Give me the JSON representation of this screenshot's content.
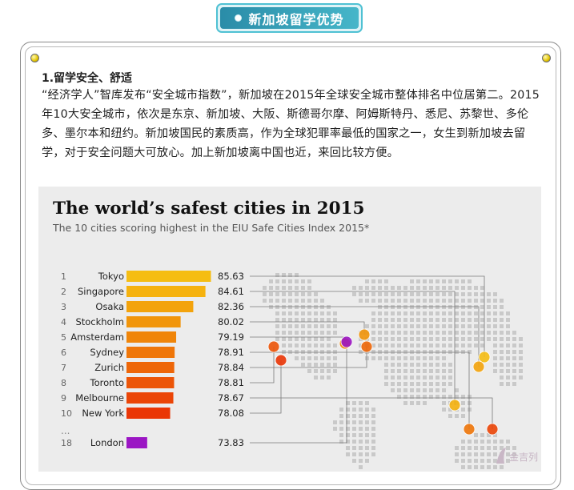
{
  "banner": {
    "title": "新加坡留学优势"
  },
  "section": {
    "title": "1.留学安全、舒适",
    "paragraph": "“经济学人”智库发布“安全城市指数”，新加坡在2015年全球安全城市整体排名中位居第二。2015年10大安全城市，依次是东京、新加坡、大阪、斯德哥尔摩、阿姆斯特丹、悉尼、苏黎世、多伦多、墨尔本和纽约。新加坡国民的素质高，作为全球犯罪率最低的国家之一，女生到新加坡去留学，对于安全问题大可放心。加上新加坡离中国也近，来回比较方便。"
  },
  "chart_data": {
    "type": "bar",
    "orientation": "horizontal",
    "title": "The world’s safest cities in 2015",
    "subtitle": "The 10 cities scoring highest in the EIU Safe Cities Index 2015*",
    "ranks": [
      "1",
      "2",
      "3",
      "4",
      "5",
      "6",
      "7",
      "8",
      "9",
      "10",
      "18"
    ],
    "categories": [
      "Tokyo",
      "Singapore",
      "Osaka",
      "Stockholm",
      "Amsterdam",
      "Sydney",
      "Zurich",
      "Toronto",
      "Melbourne",
      "New York",
      "London"
    ],
    "values": [
      85.63,
      84.61,
      82.36,
      80.02,
      79.19,
      78.91,
      78.84,
      78.81,
      78.67,
      78.08,
      73.83
    ],
    "value_labels": [
      "85.63",
      "84.61",
      "82.36",
      "80.02",
      "79.19",
      "78.91",
      "78.84",
      "78.81",
      "78.67",
      "78.08",
      "73.83"
    ],
    "ellipsis": "...",
    "colors": [
      "#f5bd12",
      "#f5b20f",
      "#f3a30c",
      "#f1950b",
      "#f08509",
      "#ef7609",
      "#ee6608",
      "#ec5508",
      "#eb4507",
      "#ea3606",
      "#9b16c4"
    ]
  },
  "watermark": {
    "text": "金吉列"
  }
}
